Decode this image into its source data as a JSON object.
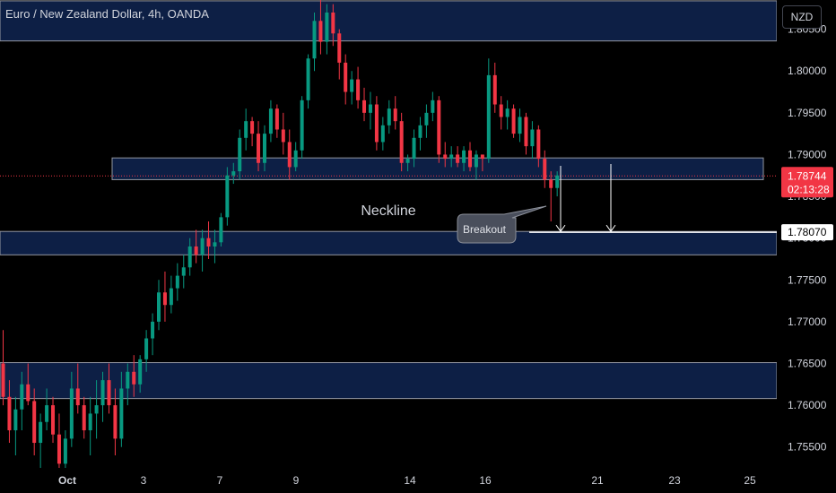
{
  "title": "Euro / New Zealand Dollar, 4h, OANDA",
  "currency_button": "NZD",
  "annotations": {
    "neckline": "Neckline",
    "breakout": "Breakout"
  },
  "price_badge": {
    "price": "1.78744",
    "countdown": "02:13:28",
    "color": "#f23645"
  },
  "target_badge": {
    "price": "1.78070"
  },
  "colors": {
    "up": "#089981",
    "down": "#f23645",
    "zone_fill": "#0d1f45",
    "zone_border": "#9598a1",
    "background": "#000000"
  },
  "chart_data": {
    "type": "candlestick",
    "symbol": "EURNZD",
    "timeframe": "4h",
    "ylim": [
      1.7525,
      1.8085
    ],
    "y_ticks": [
      "1.75500",
      "1.76000",
      "1.76500",
      "1.77000",
      "1.77500",
      "1.78000",
      "1.78500",
      "1.79000",
      "1.79500",
      "1.80000",
      "1.80500"
    ],
    "x_ticks": [
      "Oct",
      "3",
      "7",
      "9",
      "14",
      "16",
      "21",
      "23",
      "25"
    ],
    "zones": [
      {
        "top": 1.8084,
        "bottom": 1.8036
      },
      {
        "top": 1.7896,
        "bottom": 1.787,
        "label": "Neckline"
      },
      {
        "top": 1.7808,
        "bottom": 1.778
      },
      {
        "top": 1.7651,
        "bottom": 1.7608
      }
    ],
    "target_price": 1.7807,
    "current_price": 1.78744,
    "candles": [
      [
        1.765,
        1.769,
        1.76,
        1.761
      ],
      [
        1.761,
        1.763,
        1.7555,
        1.757
      ],
      [
        1.757,
        1.761,
        1.754,
        1.7595
      ],
      [
        1.7595,
        1.764,
        1.757,
        1.7625
      ],
      [
        1.7625,
        1.765,
        1.76,
        1.7605
      ],
      [
        1.7605,
        1.762,
        1.754,
        1.7555
      ],
      [
        1.7555,
        1.759,
        1.7525,
        1.758
      ],
      [
        1.758,
        1.762,
        1.757,
        1.76
      ],
      [
        1.76,
        1.761,
        1.7555,
        1.7565
      ],
      [
        1.7565,
        1.759,
        1.7525,
        1.753
      ],
      [
        1.753,
        1.757,
        1.7525,
        1.756
      ],
      [
        1.756,
        1.764,
        1.755,
        1.762
      ],
      [
        1.762,
        1.765,
        1.759,
        1.76
      ],
      [
        1.76,
        1.761,
        1.756,
        1.757
      ],
      [
        1.757,
        1.761,
        1.754,
        1.759
      ],
      [
        1.759,
        1.763,
        1.756,
        1.76
      ],
      [
        1.76,
        1.764,
        1.758,
        1.763
      ],
      [
        1.763,
        1.765,
        1.759,
        1.76
      ],
      [
        1.76,
        1.762,
        1.754,
        1.756
      ],
      [
        1.756,
        1.764,
        1.755,
        1.762
      ],
      [
        1.762,
        1.765,
        1.76,
        1.764
      ],
      [
        1.764,
        1.766,
        1.761,
        1.7625
      ],
      [
        1.7625,
        1.766,
        1.7615,
        1.7655
      ],
      [
        1.7655,
        1.769,
        1.764,
        1.768
      ],
      [
        1.768,
        1.771,
        1.766,
        1.77
      ],
      [
        1.77,
        1.775,
        1.769,
        1.7735
      ],
      [
        1.7735,
        1.776,
        1.77,
        1.772
      ],
      [
        1.772,
        1.7755,
        1.771,
        1.774
      ],
      [
        1.774,
        1.777,
        1.7725,
        1.7755
      ],
      [
        1.7755,
        1.778,
        1.774,
        1.7765
      ],
      [
        1.7765,
        1.78,
        1.7755,
        1.779
      ],
      [
        1.779,
        1.781,
        1.777,
        1.778
      ],
      [
        1.778,
        1.781,
        1.776,
        1.78
      ],
      [
        1.78,
        1.782,
        1.7775,
        1.779
      ],
      [
        1.779,
        1.781,
        1.777,
        1.7795
      ],
      [
        1.7795,
        1.783,
        1.779,
        1.7825
      ],
      [
        1.7825,
        1.7885,
        1.7815,
        1.7875
      ],
      [
        1.7875,
        1.789,
        1.7865,
        1.788
      ],
      [
        1.788,
        1.793,
        1.787,
        1.792
      ],
      [
        1.792,
        1.7955,
        1.7905,
        1.794
      ],
      [
        1.794,
        1.7945,
        1.791,
        1.7925
      ],
      [
        1.7925,
        1.794,
        1.788,
        1.789
      ],
      [
        1.789,
        1.7935,
        1.788,
        1.7925
      ],
      [
        1.7925,
        1.7965,
        1.7915,
        1.7955
      ],
      [
        1.7955,
        1.796,
        1.792,
        1.793
      ],
      [
        1.793,
        1.795,
        1.79,
        1.7915
      ],
      [
        1.7915,
        1.793,
        1.787,
        1.7885
      ],
      [
        1.7885,
        1.7915,
        1.788,
        1.7905
      ],
      [
        1.7905,
        1.797,
        1.7895,
        1.7965
      ],
      [
        1.7965,
        1.802,
        1.7955,
        1.8015
      ],
      [
        1.8015,
        1.807,
        1.8,
        1.806
      ],
      [
        1.806,
        1.8085,
        1.802,
        1.8035
      ],
      [
        1.8035,
        1.808,
        1.802,
        1.807
      ],
      [
        1.807,
        1.808,
        1.803,
        1.8045
      ],
      [
        1.8045,
        1.805,
        1.799,
        1.801
      ],
      [
        1.801,
        1.802,
        1.796,
        1.7975
      ],
      [
        1.7975,
        1.8,
        1.796,
        1.799
      ],
      [
        1.799,
        1.8005,
        1.7955,
        1.7965
      ],
      [
        1.7965,
        1.798,
        1.794,
        1.795
      ],
      [
        1.795,
        1.7975,
        1.793,
        1.796
      ],
      [
        1.796,
        1.797,
        1.7905,
        1.7915
      ],
      [
        1.7915,
        1.7945,
        1.7905,
        1.7935
      ],
      [
        1.7935,
        1.7965,
        1.7925,
        1.7955
      ],
      [
        1.7955,
        1.797,
        1.793,
        1.794
      ],
      [
        1.794,
        1.795,
        1.788,
        1.789
      ],
      [
        1.789,
        1.79,
        1.788,
        1.7895
      ],
      [
        1.7895,
        1.793,
        1.7885,
        1.792
      ],
      [
        1.792,
        1.7945,
        1.7905,
        1.7935
      ],
      [
        1.7935,
        1.796,
        1.792,
        1.795
      ],
      [
        1.795,
        1.7975,
        1.794,
        1.7965
      ],
      [
        1.7965,
        1.797,
        1.789,
        1.79
      ],
      [
        1.79,
        1.7915,
        1.7885,
        1.7895
      ],
      [
        1.7895,
        1.791,
        1.7885,
        1.79
      ],
      [
        1.79,
        1.791,
        1.7885,
        1.789
      ],
      [
        1.789,
        1.791,
        1.788,
        1.7905
      ],
      [
        1.7905,
        1.7915,
        1.788,
        1.7885
      ],
      [
        1.7885,
        1.7905,
        1.787,
        1.79
      ],
      [
        1.79,
        1.79,
        1.788,
        1.7895
      ],
      [
        1.7895,
        1.8015,
        1.789,
        1.7995
      ],
      [
        1.7995,
        1.801,
        1.795,
        1.796
      ],
      [
        1.796,
        1.797,
        1.793,
        1.7945
      ],
      [
        1.7945,
        1.7965,
        1.793,
        1.7955
      ],
      [
        1.7955,
        1.796,
        1.792,
        1.7925
      ],
      [
        1.7925,
        1.7955,
        1.7915,
        1.7945
      ],
      [
        1.7945,
        1.795,
        1.79,
        1.791
      ],
      [
        1.791,
        1.794,
        1.7895,
        1.793
      ],
      [
        1.793,
        1.7935,
        1.7885,
        1.7895
      ],
      [
        1.7895,
        1.7905,
        1.786,
        1.787
      ],
      [
        1.787,
        1.788,
        1.782,
        1.786
      ],
      [
        1.786,
        1.788,
        1.785,
        1.7875
      ]
    ]
  }
}
